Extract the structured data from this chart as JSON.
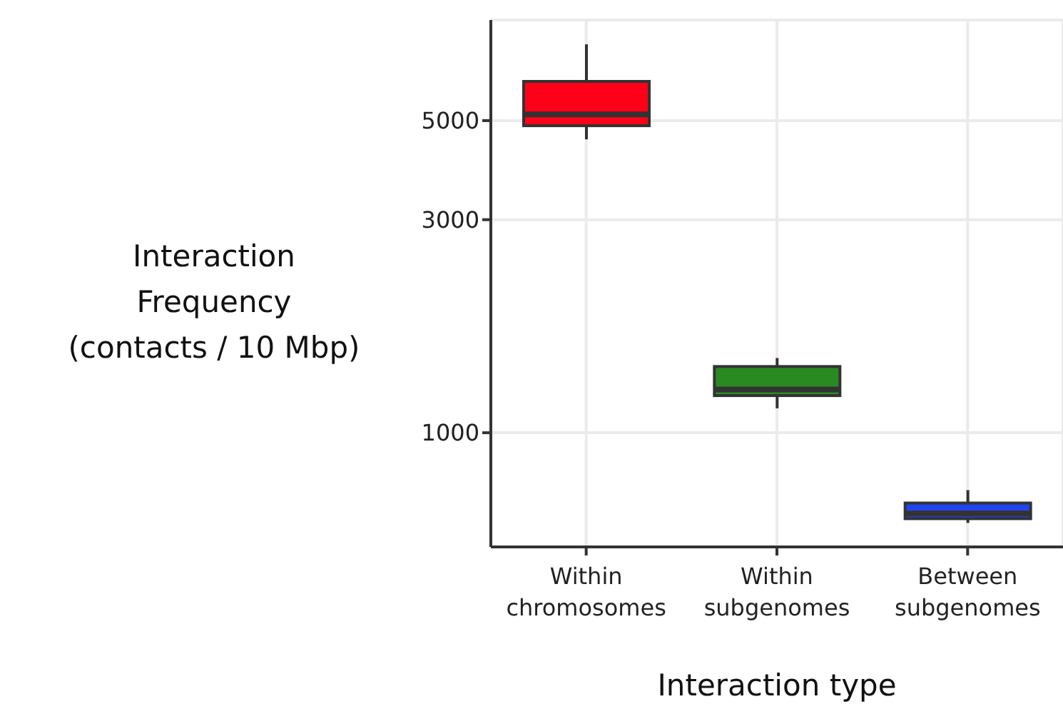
{
  "chart_data": {
    "type": "box",
    "xlabel": "Interaction type",
    "ylabel": "Interaction\nFrequency\n(contacts / 10 Mbp)",
    "categories": [
      "Within chromosomes",
      "Within subgenomes",
      "Between subgenomes"
    ],
    "boxes": [
      {
        "low": 4540,
        "q1": 4870,
        "median": 5160,
        "q3": 6120,
        "high": 7410
      },
      {
        "low": 1134,
        "q1": 1211,
        "median": 1250,
        "q3": 1407,
        "high": 1470
      },
      {
        "low": 628,
        "q1": 642,
        "median": 659,
        "q3": 696,
        "high": 744
      }
    ],
    "colors": [
      "#ff0019",
      "#2a8a22",
      "#2244ee"
    ],
    "log": true,
    "ylim": [
      555,
      8400
    ],
    "yticks": [
      1000,
      3000,
      5000
    ],
    "grid": true,
    "legend": false
  }
}
